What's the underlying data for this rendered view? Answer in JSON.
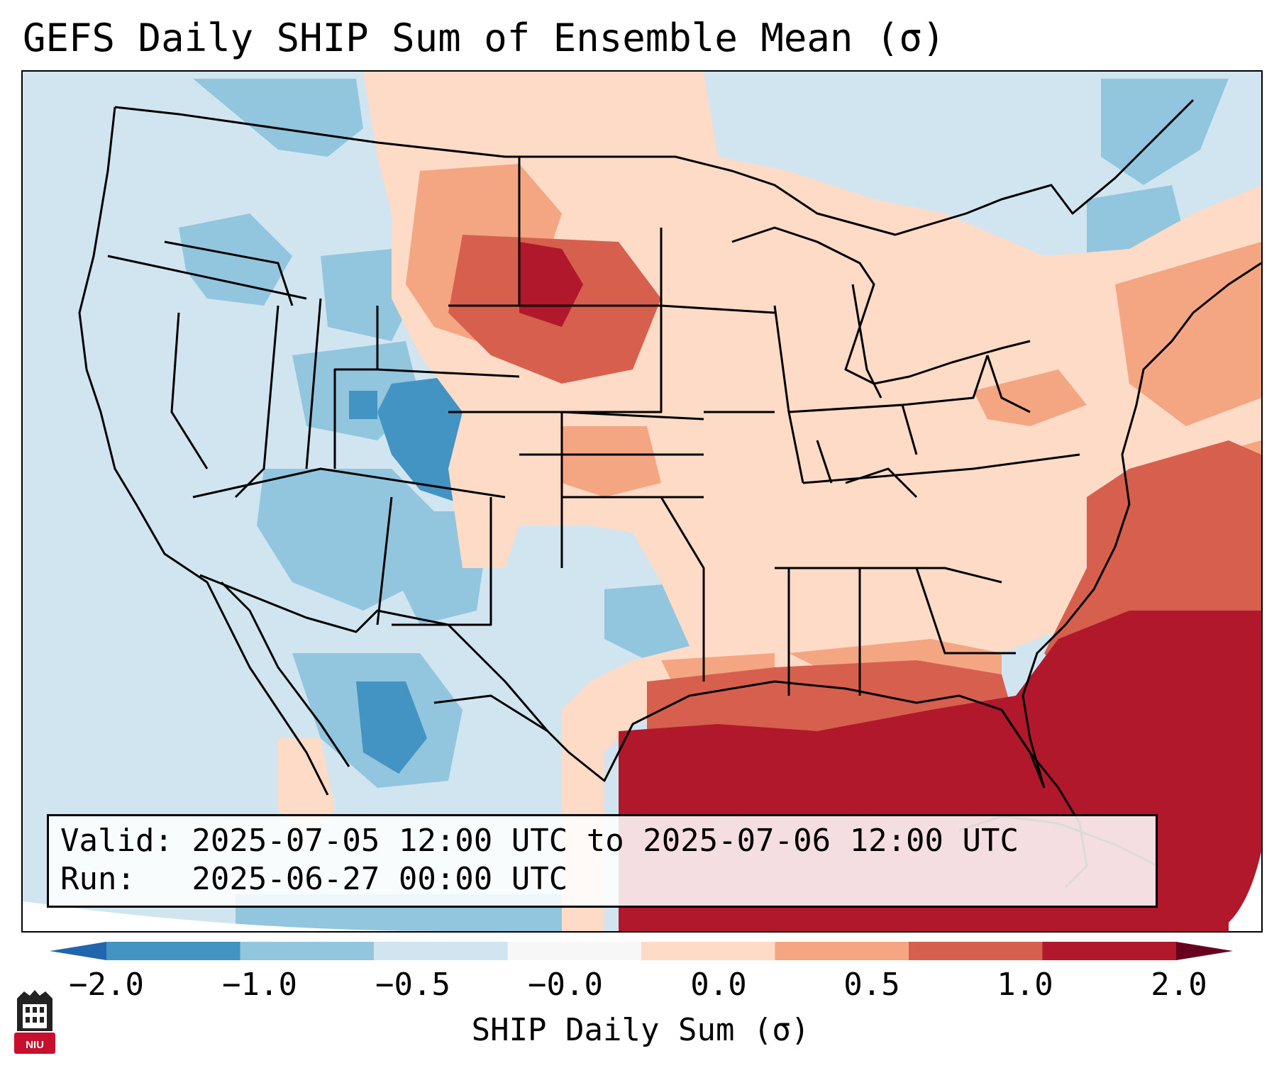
{
  "title": "GEFS Daily SHIP Sum of Ensemble Mean (σ)",
  "info": {
    "valid": "Valid: 2025-07-05 12:00 UTC to 2025-07-06 12:00 UTC",
    "run": "Run:   2025-06-27 00:00 UTC"
  },
  "colorbar": {
    "label": "SHIP Daily Sum (σ)",
    "ticks": [
      "−2.0",
      "−1.0",
      "−0.5",
      "−0.0",
      "0.0",
      "0.5",
      "1.0",
      "2.0"
    ],
    "colors": [
      "#4393c3",
      "#92c5de",
      "#d1e5f0",
      "#f7f7f7",
      "#fddbc7",
      "#f4a582",
      "#d6604d",
      "#b2182b"
    ],
    "under_color": "#2166ac",
    "over_color": "#67001f"
  },
  "logo": {
    "text": "NIU",
    "icon": "niu-logo-icon",
    "color": "#c8102e"
  }
}
